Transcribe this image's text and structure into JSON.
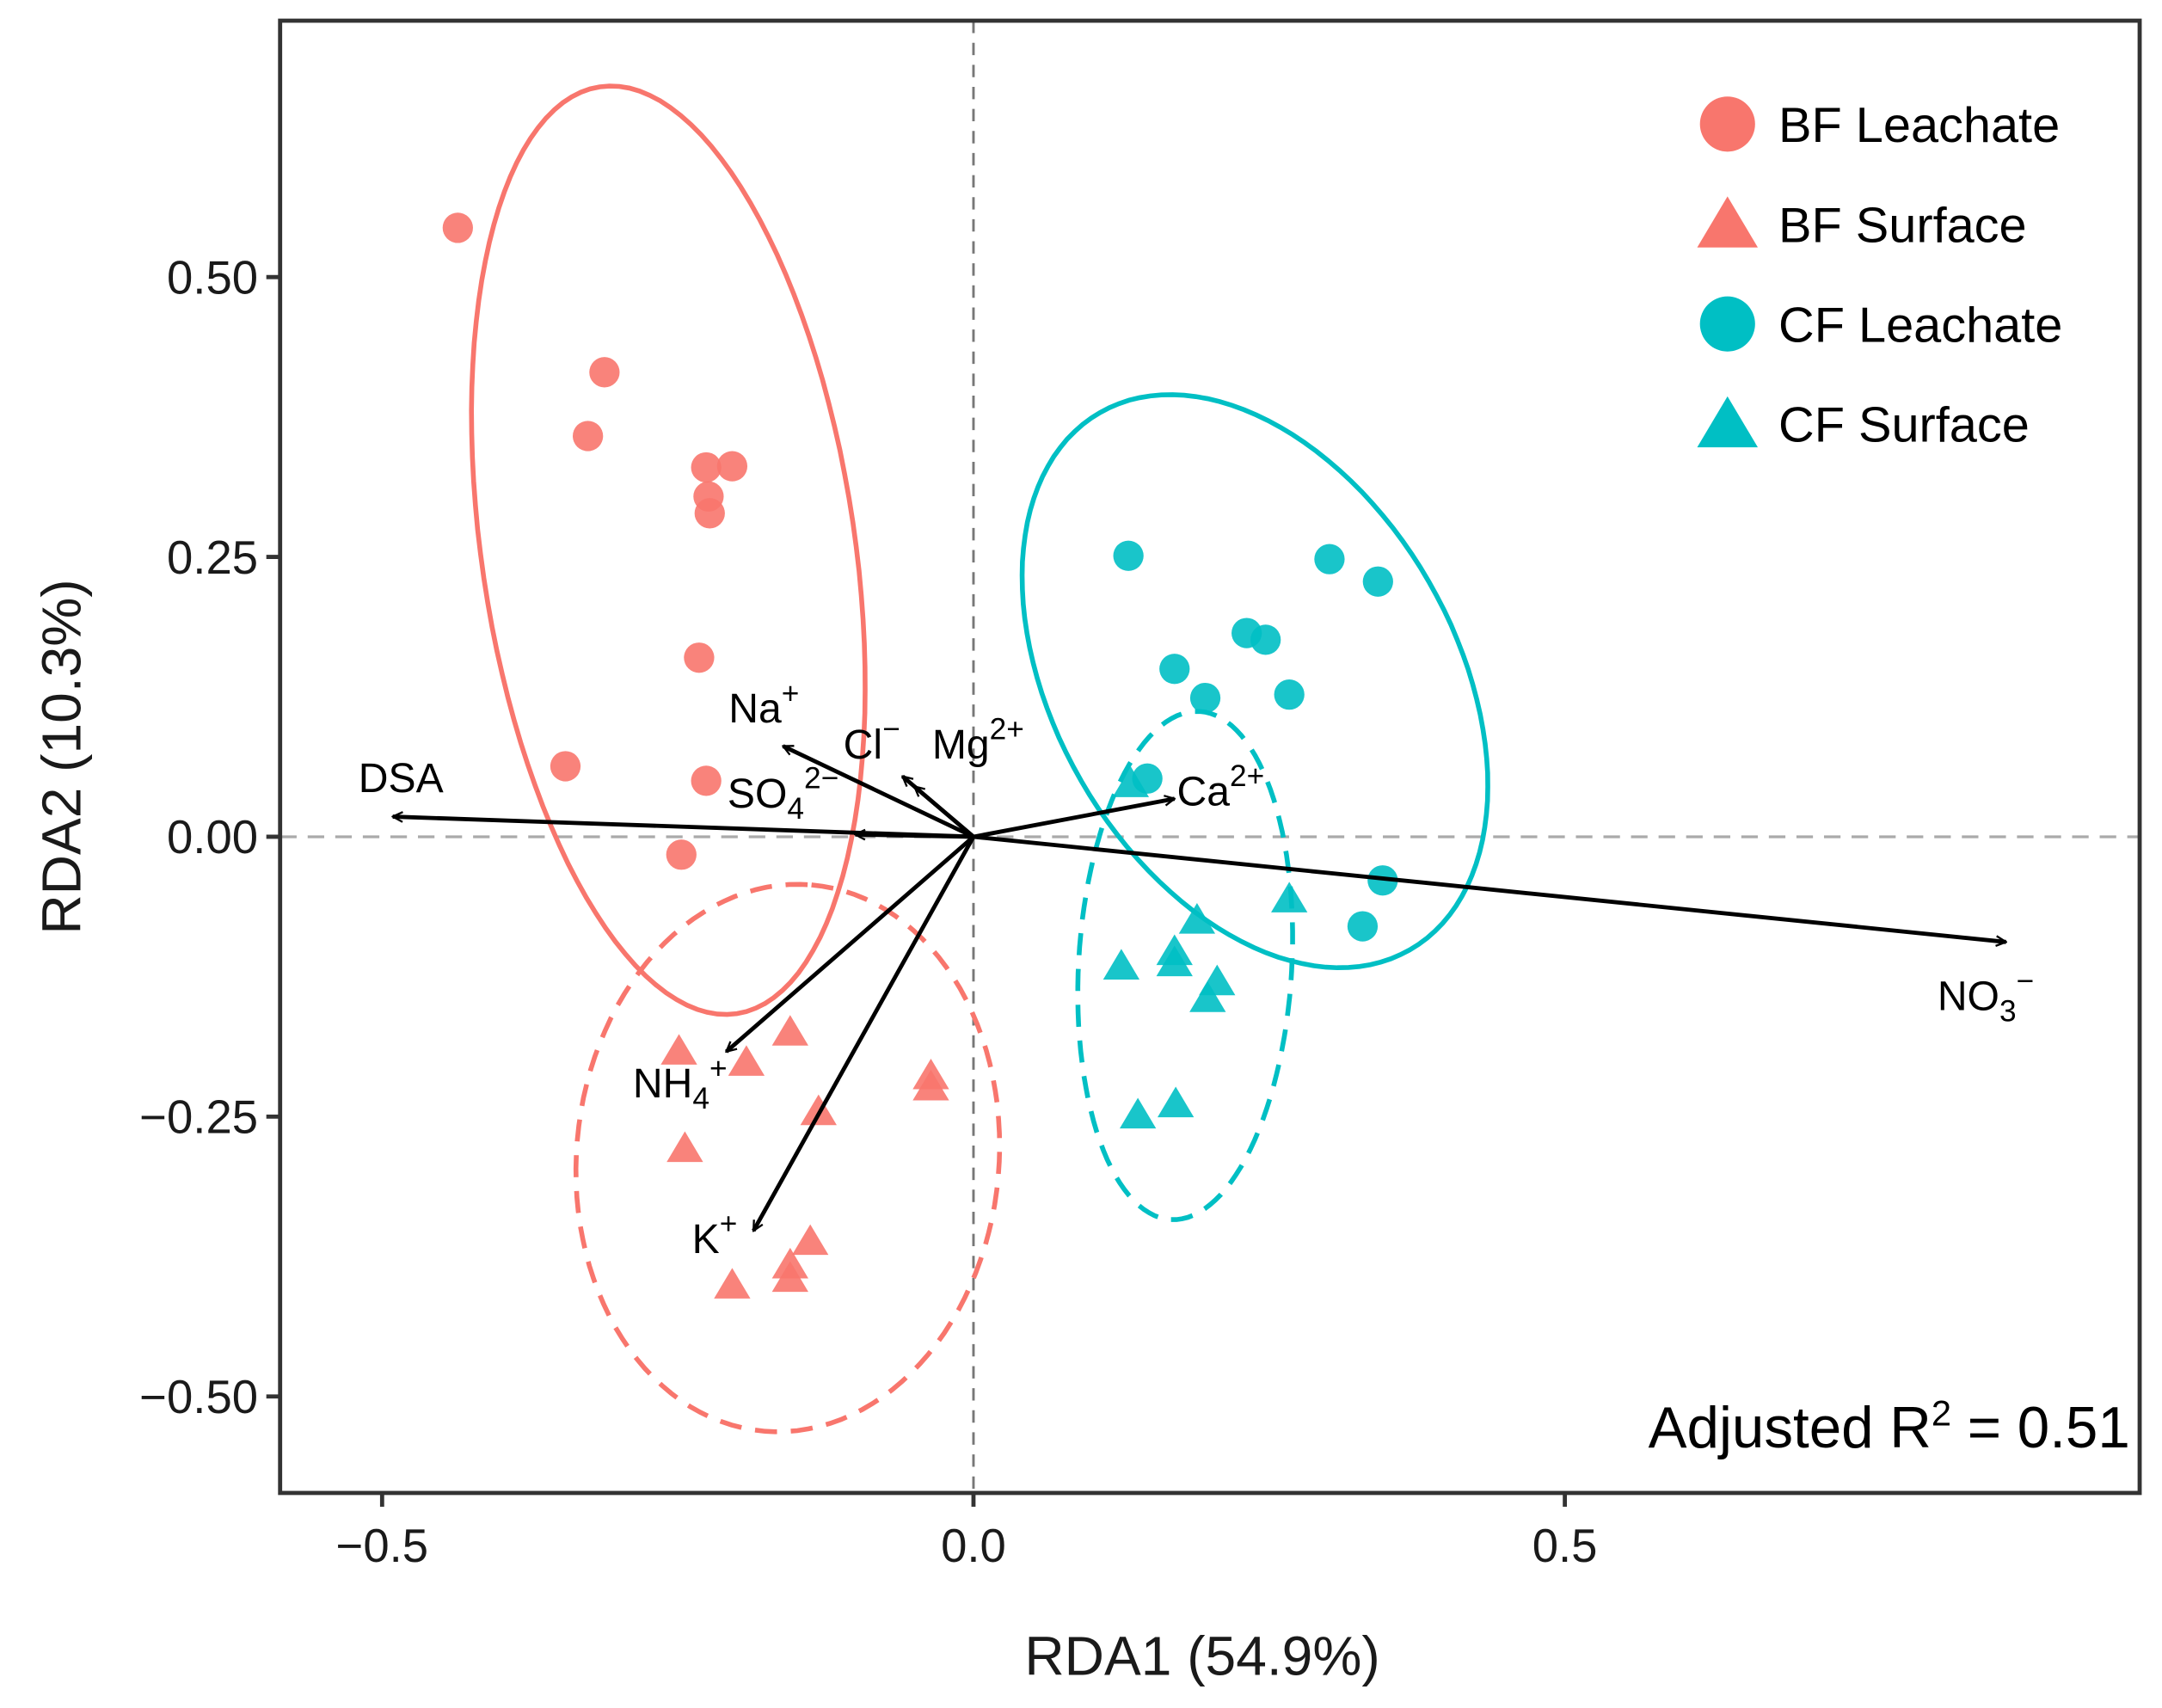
{
  "chart_data": {
    "type": "scatter",
    "xlabel": "RDA1 (54.9%)",
    "ylabel": "RDA2 (10.3%)",
    "xlim": [
      -0.585,
      1.0
    ],
    "ylim": [
      -0.59,
      0.73
    ],
    "xticks": [
      {
        "v": -0.5,
        "label": "−0.5"
      },
      {
        "v": 0.0,
        "label": "0.0"
      },
      {
        "v": 0.5,
        "label": "0.5"
      }
    ],
    "yticks": [
      {
        "v": 0.5,
        "label": "0.50"
      },
      {
        "v": 0.25,
        "label": "0.25"
      },
      {
        "v": 0.0,
        "label": "0.00"
      },
      {
        "v": -0.25,
        "label": "−0.25"
      },
      {
        "v": -0.5,
        "label": "−0.50"
      }
    ],
    "annotation": {
      "text": "Adjusted R",
      "sup": "2",
      "rest": " = 0.51"
    },
    "legend": {
      "placement": "top-right"
    },
    "series": [
      {
        "name": "BF Leachate",
        "shape": "circle",
        "color": "#F8766D",
        "points": [
          [
            -0.436,
            0.544
          ],
          [
            -0.312,
            0.415
          ],
          [
            -0.326,
            0.358
          ],
          [
            -0.226,
            0.33
          ],
          [
            -0.204,
            0.331
          ],
          [
            -0.224,
            0.304
          ],
          [
            -0.223,
            0.289
          ],
          [
            -0.232,
            0.16
          ],
          [
            -0.345,
            0.063
          ],
          [
            -0.226,
            0.05
          ],
          [
            -0.247,
            -0.016
          ]
        ],
        "ellipse": {
          "style": "solid",
          "center": [
            -0.258,
            0.256
          ],
          "major": [
            -0.058,
            0.414
          ],
          "minor": [
            0.156,
            0.025
          ]
        }
      },
      {
        "name": "BF Surface",
        "shape": "triangle",
        "color": "#F8766D",
        "points": [
          [
            -0.249,
            -0.191
          ],
          [
            -0.155,
            -0.174
          ],
          [
            -0.192,
            -0.201
          ],
          [
            -0.036,
            -0.213
          ],
          [
            -0.036,
            -0.223
          ],
          [
            -0.131,
            -0.245
          ],
          [
            -0.244,
            -0.278
          ],
          [
            -0.138,
            -0.361
          ],
          [
            -0.155,
            -0.382
          ],
          [
            -0.155,
            -0.394
          ],
          [
            -0.204,
            -0.4
          ]
        ],
        "ellipse": {
          "style": "dashed",
          "center": [
            -0.157,
            -0.287
          ],
          "major": [
            0.02,
            0.244
          ],
          "minor": [
            0.178,
            -0.016
          ]
        }
      },
      {
        "name": "CF Leachate",
        "shape": "circle",
        "color": "#00BFC4",
        "points": [
          [
            0.131,
            0.251
          ],
          [
            0.301,
            0.248
          ],
          [
            0.342,
            0.228
          ],
          [
            0.231,
            0.182
          ],
          [
            0.247,
            0.176
          ],
          [
            0.17,
            0.15
          ],
          [
            0.196,
            0.124
          ],
          [
            0.267,
            0.127
          ],
          [
            0.147,
            0.052
          ],
          [
            0.346,
            -0.039
          ],
          [
            0.329,
            -0.08
          ]
        ],
        "ellipse": {
          "style": "solid",
          "center": [
            0.238,
            0.139
          ],
          "major": [
            0.131,
            -0.24
          ],
          "minor": [
            0.147,
            0.089
          ]
        }
      },
      {
        "name": "CF Surface",
        "shape": "triangle",
        "color": "#00BFC4",
        "points": [
          [
            0.133,
            0.048
          ],
          [
            0.189,
            -0.074
          ],
          [
            0.267,
            -0.055
          ],
          [
            0.17,
            -0.102
          ],
          [
            0.17,
            -0.112
          ],
          [
            0.125,
            -0.115
          ],
          [
            0.206,
            -0.129
          ],
          [
            0.198,
            -0.144
          ],
          [
            0.139,
            -0.248
          ],
          [
            0.171,
            -0.238
          ]
        ],
        "ellipse": {
          "style": "dashed",
          "center": [
            0.179,
            -0.115
          ],
          "major": [
            -0.012,
            -0.227
          ],
          "minor": [
            0.09,
            -0.005
          ]
        }
      }
    ],
    "vectors": [
      {
        "name": "DSA",
        "base": "DSA",
        "sub": "",
        "sup": "",
        "end": [
          -0.491,
          0.018
        ],
        "label_at": [
          -0.52,
          0.04
        ]
      },
      {
        "name": "NO3-",
        "base": "NO",
        "sub": "3",
        "sup": "−",
        "end": [
          0.873,
          -0.094
        ],
        "label_at": [
          0.815,
          -0.155
        ]
      },
      {
        "name": "Ca2+",
        "base": "Ca",
        "sub": "",
        "sup": "2+",
        "end": [
          0.17,
          0.034
        ],
        "label_at": [
          0.172,
          0.028
        ]
      },
      {
        "name": "Na+",
        "base": "Na",
        "sub": "",
        "sup": "+",
        "end": [
          -0.161,
          0.081
        ],
        "label_at": [
          -0.207,
          0.102
        ]
      },
      {
        "name": "Cl-",
        "base": "Cl",
        "sub": "",
        "sup": "−",
        "end": [
          -0.06,
          0.054
        ],
        "label_at": [
          -0.11,
          0.07
        ]
      },
      {
        "name": "Mg2+",
        "base": "Mg",
        "sub": "",
        "sup": "2+",
        "end": [
          -0.05,
          0.045
        ],
        "label_at": [
          -0.035,
          0.07
        ]
      },
      {
        "name": "SO42-",
        "base": "SO",
        "sub": "4",
        "sup": "2−",
        "end": [
          -0.1,
          0.002
        ],
        "label_at": [
          -0.208,
          0.026
        ]
      },
      {
        "name": "NH4+",
        "base": "NH",
        "sub": "4",
        "sup": "+",
        "end": [
          -0.209,
          -0.192
        ],
        "label_at": [
          -0.288,
          -0.233
        ]
      },
      {
        "name": "K+",
        "base": "K",
        "sub": "",
        "sup": "+",
        "end": [
          -0.186,
          -0.352
        ],
        "label_at": [
          -0.238,
          -0.372
        ]
      }
    ]
  }
}
